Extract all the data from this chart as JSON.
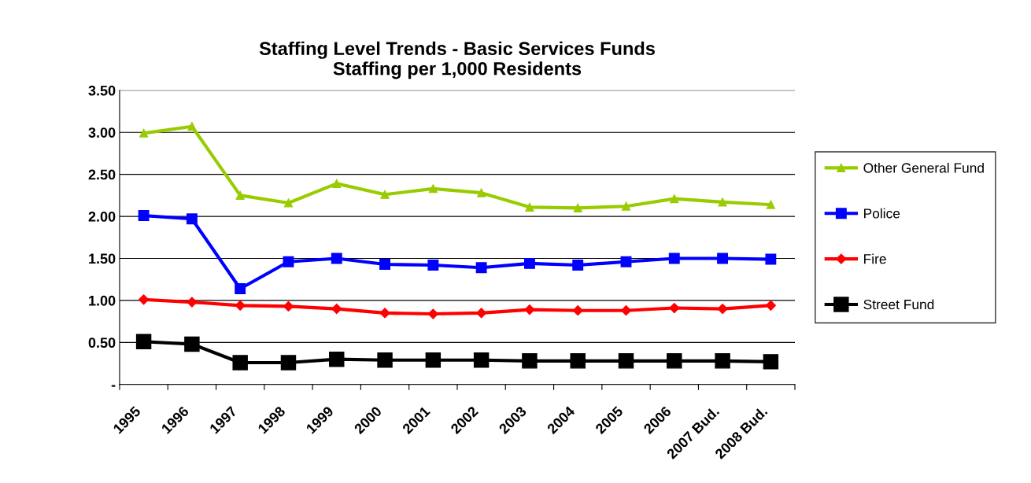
{
  "chart_data": {
    "type": "line",
    "title": "Staffing Level Trends - Basic Services Funds\nStaffing per 1,000 Residents",
    "categories": [
      "1995",
      "1996",
      "1997",
      "1998",
      "1999",
      "2000",
      "2001",
      "2002",
      "2003",
      "2004",
      "2005",
      "2006",
      "2007 Bud.",
      "2008 Bud."
    ],
    "series": [
      {
        "name": "Other General Fund",
        "color": "#99cc00",
        "marker": "triangle",
        "values": [
          2.99,
          3.07,
          2.25,
          2.16,
          2.39,
          2.26,
          2.33,
          2.28,
          2.11,
          2.1,
          2.12,
          2.21,
          2.17,
          2.14
        ]
      },
      {
        "name": "Police",
        "color": "#0000ff",
        "marker": "square",
        "values": [
          2.01,
          1.97,
          1.14,
          1.46,
          1.5,
          1.43,
          1.42,
          1.39,
          1.44,
          1.42,
          1.46,
          1.5,
          1.5,
          1.49
        ]
      },
      {
        "name": "Fire",
        "color": "#ff0000",
        "marker": "diamond",
        "values": [
          1.01,
          0.98,
          0.94,
          0.93,
          0.9,
          0.85,
          0.84,
          0.85,
          0.89,
          0.88,
          0.88,
          0.91,
          0.9,
          0.94
        ]
      },
      {
        "name": "Street Fund",
        "color": "#000000",
        "marker": "square",
        "values": [
          0.51,
          0.48,
          0.26,
          0.26,
          0.3,
          0.29,
          0.29,
          0.29,
          0.28,
          0.28,
          0.28,
          0.28,
          0.28,
          0.27
        ]
      }
    ],
    "ylim": [
      0,
      3.5
    ],
    "yticks": [
      {
        "value": 0,
        "label": "-"
      },
      {
        "value": 0.5,
        "label": "0.50"
      },
      {
        "value": 1.0,
        "label": "1.00"
      },
      {
        "value": 1.5,
        "label": "1.50"
      },
      {
        "value": 2.0,
        "label": "2.00"
      },
      {
        "value": 2.5,
        "label": "2.50"
      },
      {
        "value": 3.0,
        "label": "3.00"
      },
      {
        "value": 3.5,
        "label": "3.50"
      }
    ],
    "grid": "y",
    "legend": "right",
    "line_style": "solid"
  }
}
